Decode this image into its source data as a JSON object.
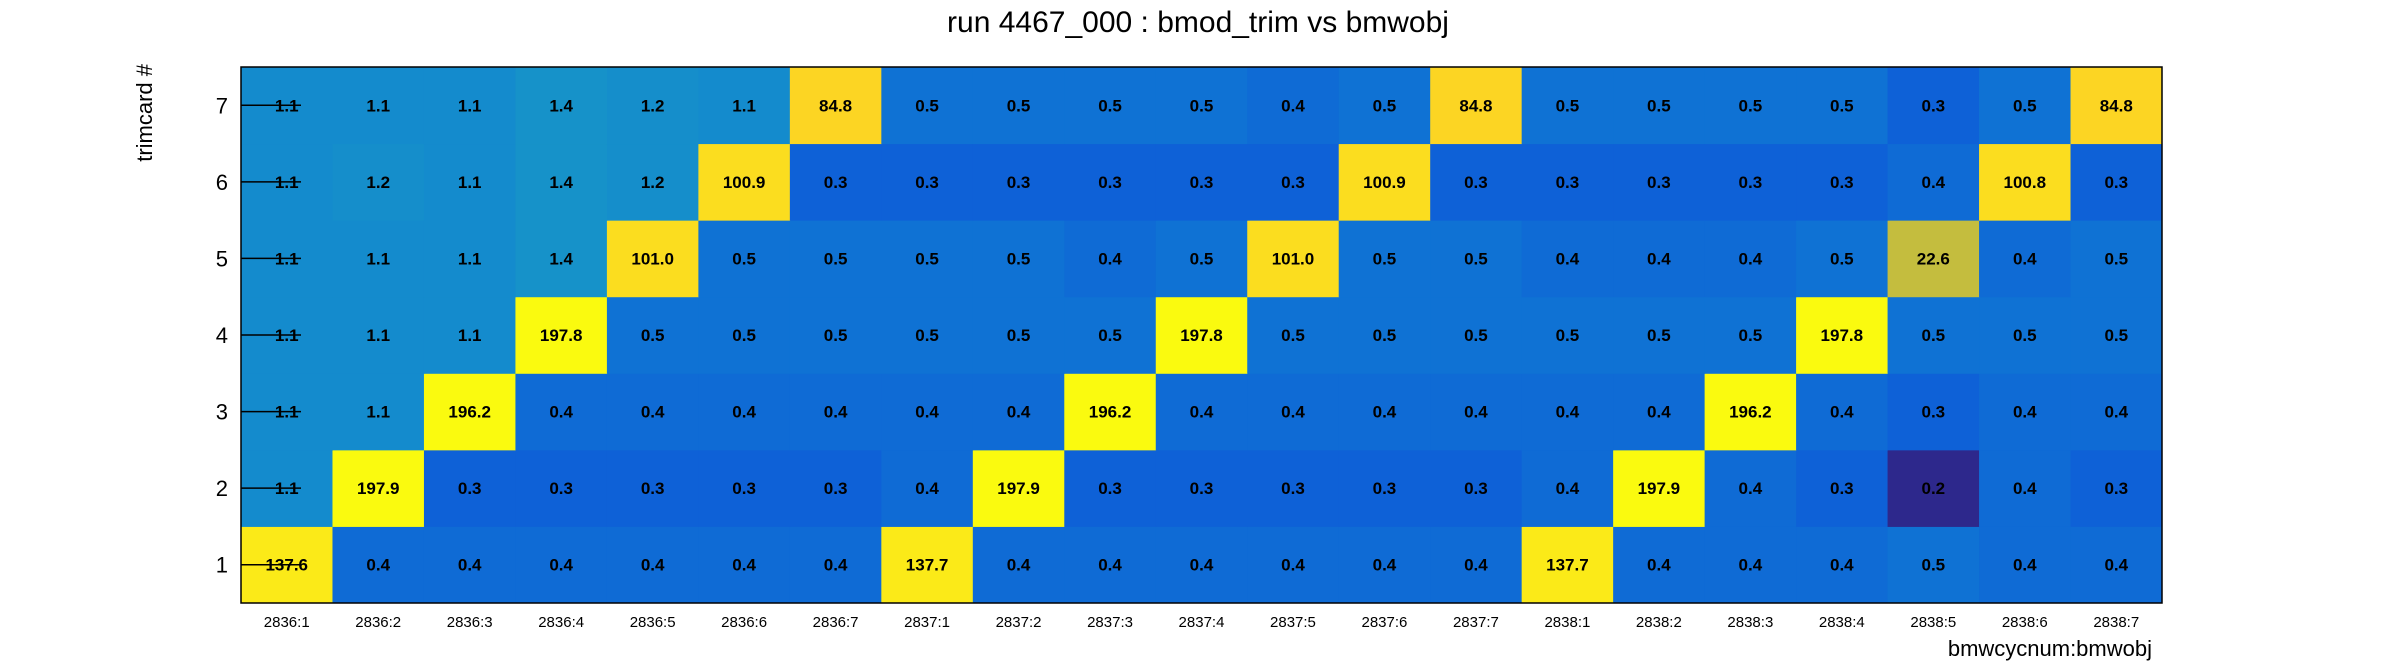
{
  "chart_data": {
    "type": "heatmap",
    "title": "run 4467_000 : bmod_trim vs bmwobj",
    "xlabel": "bmwcycnum:bmwobj",
    "ylabel": "trimcard #",
    "x_categories": [
      "2836:1",
      "2836:2",
      "2836:3",
      "2836:4",
      "2836:5",
      "2836:6",
      "2836:7",
      "2837:1",
      "2837:2",
      "2837:3",
      "2837:4",
      "2837:5",
      "2837:6",
      "2837:7",
      "2838:1",
      "2838:2",
      "2838:3",
      "2838:4",
      "2838:5",
      "2838:6",
      "2838:7"
    ],
    "y_categories": [
      "1",
      "2",
      "3",
      "4",
      "5",
      "6",
      "7"
    ],
    "values": [
      [
        "137.6",
        "0.4",
        "0.4",
        "0.4",
        "0.4",
        "0.4",
        "0.4",
        "137.7",
        "0.4",
        "0.4",
        "0.4",
        "0.4",
        "0.4",
        "0.4",
        "137.7",
        "0.4",
        "0.4",
        "0.4",
        "0.5",
        "0.4",
        "0.4"
      ],
      [
        "1.1",
        "197.9",
        "0.3",
        "0.3",
        "0.3",
        "0.3",
        "0.3",
        "0.4",
        "197.9",
        "0.3",
        "0.3",
        "0.3",
        "0.3",
        "0.3",
        "0.4",
        "197.9",
        "0.4",
        "0.3",
        "0.2",
        "0.4",
        "0.3"
      ],
      [
        "1.1",
        "1.1",
        "196.2",
        "0.4",
        "0.4",
        "0.4",
        "0.4",
        "0.4",
        "0.4",
        "196.2",
        "0.4",
        "0.4",
        "0.4",
        "0.4",
        "0.4",
        "0.4",
        "196.2",
        "0.4",
        "0.3",
        "0.4",
        "0.4"
      ],
      [
        "1.1",
        "1.1",
        "1.1",
        "197.8",
        "0.5",
        "0.5",
        "0.5",
        "0.5",
        "0.5",
        "0.5",
        "197.8",
        "0.5",
        "0.5",
        "0.5",
        "0.5",
        "0.5",
        "0.5",
        "197.8",
        "0.5",
        "0.5",
        "0.5"
      ],
      [
        "1.1",
        "1.1",
        "1.1",
        "1.4",
        "101.0",
        "0.5",
        "0.5",
        "0.5",
        "0.5",
        "0.4",
        "0.5",
        "101.0",
        "0.5",
        "0.5",
        "0.4",
        "0.4",
        "0.4",
        "0.5",
        "22.6",
        "0.4",
        "0.5"
      ],
      [
        "1.1",
        "1.2",
        "1.1",
        "1.4",
        "1.2",
        "100.9",
        "0.3",
        "0.3",
        "0.3",
        "0.3",
        "0.3",
        "0.3",
        "100.9",
        "0.3",
        "0.3",
        "0.3",
        "0.3",
        "0.3",
        "0.4",
        "100.8",
        "0.3"
      ],
      [
        "1.1",
        "1.1",
        "1.1",
        "1.4",
        "1.2",
        "1.1",
        "84.8",
        "0.5",
        "0.5",
        "0.5",
        "0.5",
        "0.4",
        "0.5",
        "84.8",
        "0.5",
        "0.5",
        "0.5",
        "0.5",
        "0.3",
        "0.5",
        "84.8"
      ]
    ],
    "colormap": "ROOT kBird (blue to yellow)",
    "grid": false,
    "legend": "none"
  }
}
